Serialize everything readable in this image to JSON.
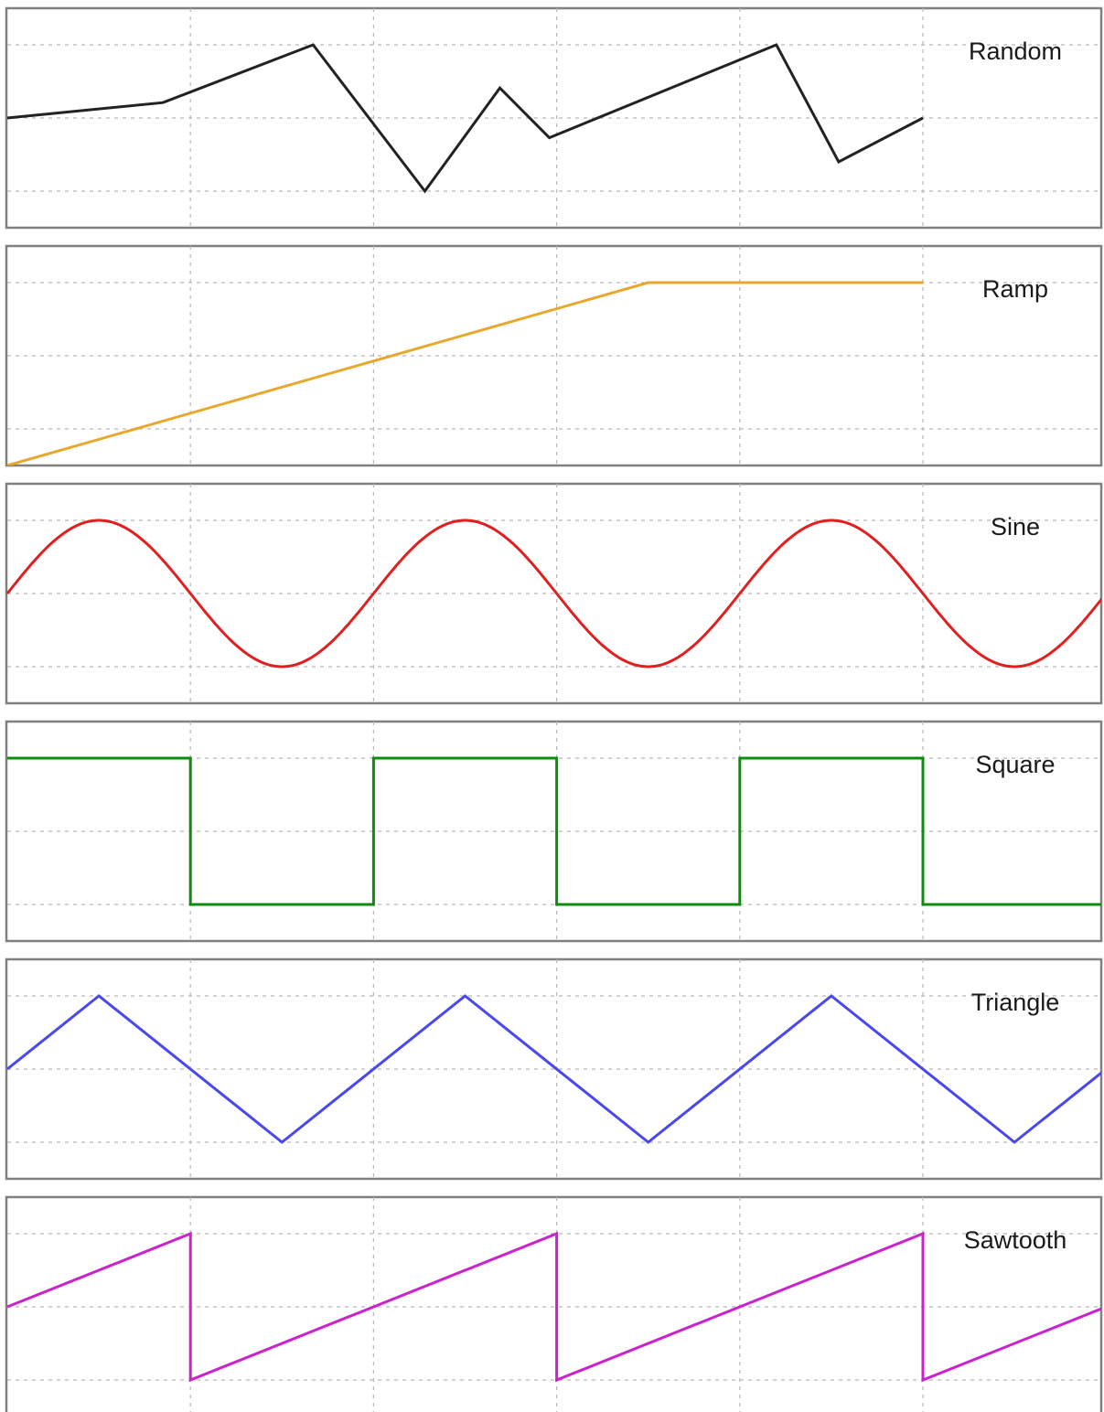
{
  "chart_data": [
    {
      "type": "line",
      "title": "Random",
      "color": "#222222",
      "xlim": [
        0,
        6
      ],
      "ylim": [
        -1.5,
        1.5
      ],
      "x": [
        0,
        0.85,
        1.67,
        2.28,
        2.69,
        2.96,
        4.2,
        4.54,
        5.0
      ],
      "y": [
        0,
        0.21,
        1.0,
        -1.0,
        0.41,
        -0.27,
        1.0,
        -0.6,
        0
      ]
    },
    {
      "type": "line",
      "title": "Ramp",
      "color": "#e8a82e",
      "xlim": [
        0,
        6
      ],
      "ylim": [
        -1.5,
        1.5
      ],
      "x": [
        0,
        3.5,
        5.0
      ],
      "y": [
        -1.5,
        1.0,
        1.0
      ]
    },
    {
      "type": "line",
      "title": "Sine",
      "color": "#e02020",
      "xlim": [
        0,
        6
      ],
      "ylim": [
        -1.5,
        1.5
      ],
      "function": "sine",
      "period": 2,
      "amplitude": 1,
      "x_end": 6
    },
    {
      "type": "line",
      "title": "Square",
      "color": "#0e8c0e",
      "xlim": [
        0,
        6
      ],
      "ylim": [
        -1.5,
        1.5
      ],
      "x": [
        0,
        1,
        1,
        2,
        2,
        3,
        3,
        4,
        4,
        5,
        5,
        6
      ],
      "y": [
        1,
        1,
        -1,
        -1,
        1,
        1,
        -1,
        -1,
        1,
        1,
        -1,
        -1
      ]
    },
    {
      "type": "line",
      "title": "Triangle",
      "color": "#4848ee",
      "xlim": [
        0,
        6
      ],
      "ylim": [
        -1.5,
        1.5
      ],
      "x": [
        0,
        0.5,
        1.5,
        2.5,
        3.5,
        4.5,
        5.5,
        6
      ],
      "y": [
        0,
        1,
        -1,
        1,
        -1,
        1,
        -1,
        0
      ]
    },
    {
      "type": "line",
      "title": "Sawtooth",
      "color": "#cc22cc",
      "xlim": [
        0,
        6
      ],
      "ylim": [
        -1.5,
        1.5
      ],
      "x": [
        0,
        1,
        1,
        3,
        3,
        5,
        5,
        6
      ],
      "y": [
        0,
        1,
        -1,
        1,
        -1,
        1,
        -1,
        0
      ]
    }
  ]
}
